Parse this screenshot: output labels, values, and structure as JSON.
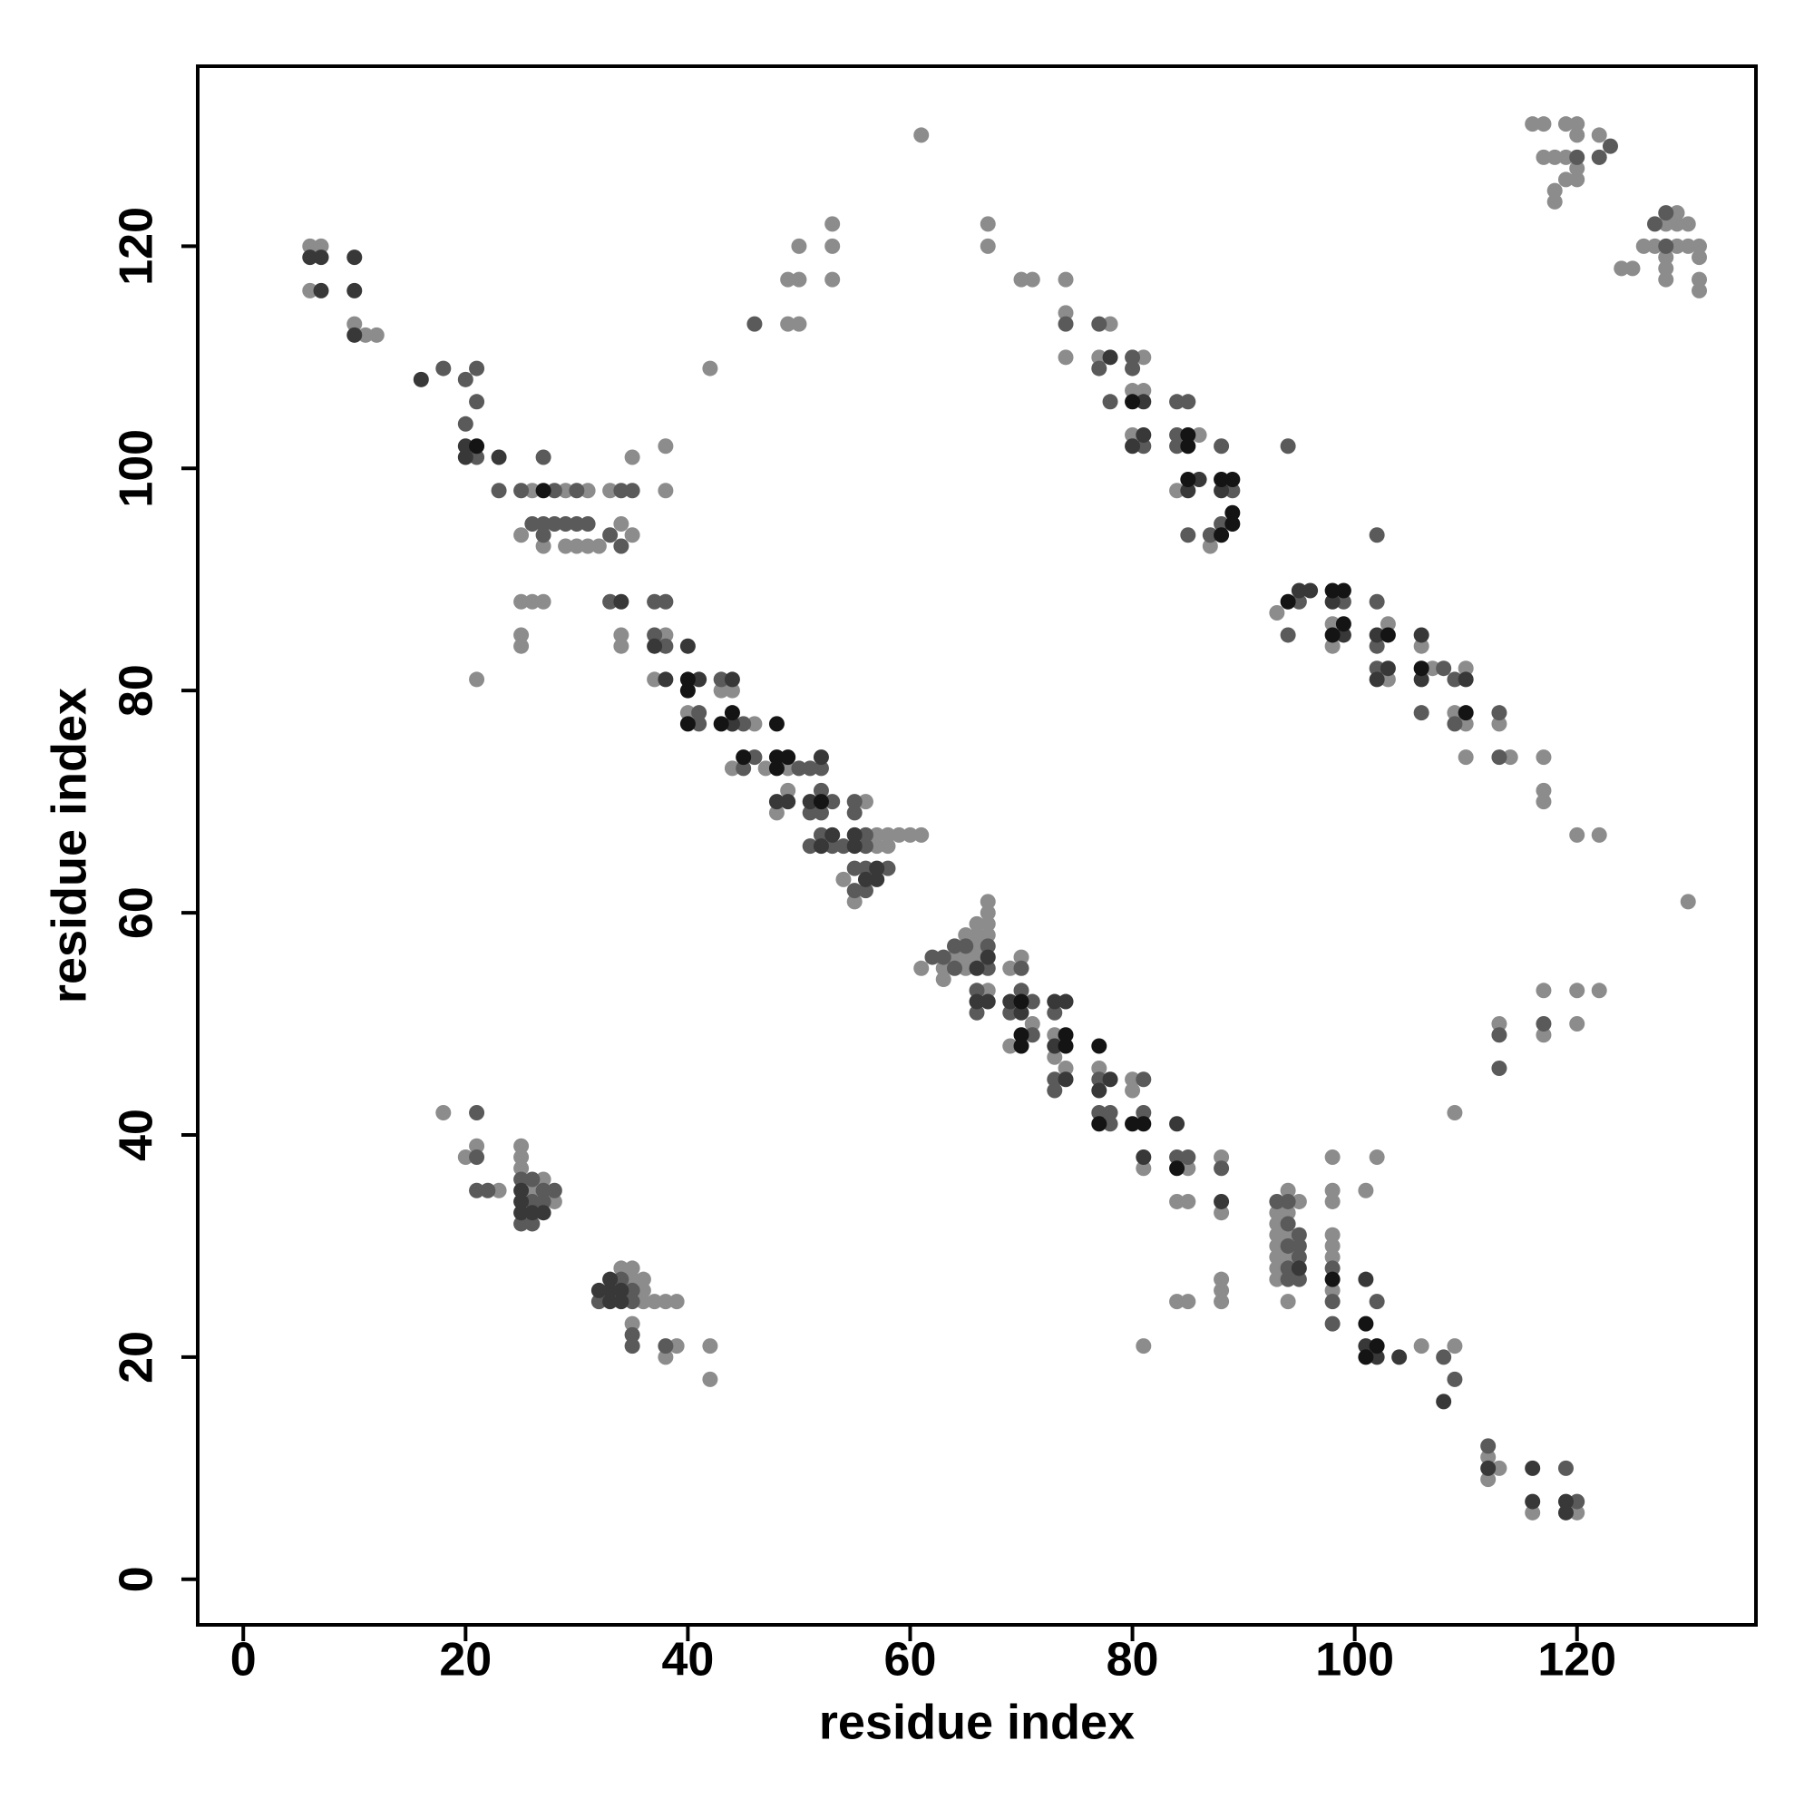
{
  "chart_data": {
    "type": "scatter",
    "xlabel": "residue index",
    "ylabel": "residue index",
    "xlim": [
      -4.1,
      136.1
    ],
    "ylim": [
      -4.1,
      136.2
    ],
    "xticks": [
      0,
      20,
      40,
      60,
      80,
      100,
      120
    ],
    "yticks": [
      0,
      20,
      40,
      60,
      80,
      100,
      120
    ],
    "series": [
      {
        "color": "#8c8c8c",
        "x": [
          6,
          7,
          6,
          10,
          11,
          12,
          26,
          29,
          31,
          33,
          35,
          38,
          38,
          25,
          27,
          29,
          30,
          31,
          32,
          34,
          35,
          25,
          26,
          27,
          25,
          25,
          21,
          34,
          34,
          38,
          37,
          40,
          43,
          44,
          46,
          44,
          47,
          49,
          49,
          48,
          57,
          58,
          59,
          60,
          61,
          57,
          58,
          54,
          55,
          56,
          61,
          63,
          63,
          64,
          65,
          65,
          65,
          66,
          66,
          66,
          66,
          67,
          67,
          67,
          67,
          67,
          69,
          70,
          71,
          73,
          69,
          73,
          74,
          77,
          80,
          80,
          81,
          85,
          84,
          85,
          88,
          88,
          18,
          20,
          21,
          23,
          25,
          25,
          25,
          26,
          27,
          28,
          34,
          35,
          35,
          36,
          36,
          36,
          37,
          38,
          39,
          35,
          39,
          38,
          42,
          42,
          61,
          67,
          67,
          53,
          53,
          53,
          50,
          49,
          50,
          49,
          50,
          42,
          70,
          71,
          74,
          74,
          74,
          78,
          77,
          81,
          80,
          81,
          80,
          86,
          84,
          87,
          93,
          98,
          98,
          103,
          103,
          106,
          107,
          110,
          109,
          110,
          110,
          113,
          114,
          117,
          117,
          117,
          120,
          122,
          130,
          109,
          113,
          117,
          117,
          120,
          120,
          122,
          93,
          93,
          93,
          93,
          93,
          93,
          93,
          94,
          94,
          94,
          94,
          95,
          94,
          98,
          98,
          98,
          98,
          98,
          98,
          98,
          101,
          102,
          106,
          109,
          81,
          84,
          85,
          88,
          88,
          88,
          112,
          112,
          113,
          116,
          120,
          116,
          117,
          119,
          120,
          120,
          122,
          117,
          118,
          119,
          120,
          119,
          120,
          118,
          118,
          129,
          128,
          129,
          130,
          126,
          127,
          129,
          130,
          131,
          128,
          131,
          128,
          124,
          125,
          128,
          131,
          131
        ],
        "y": [
          120,
          120,
          116,
          113,
          112,
          112,
          98,
          98,
          98,
          98,
          101,
          102,
          98,
          94,
          93,
          93,
          93,
          93,
          93,
          95,
          94,
          88,
          88,
          88,
          85,
          84,
          81,
          85,
          84,
          85,
          81,
          78,
          80,
          80,
          77,
          73,
          73,
          73,
          71,
          69,
          67,
          67,
          67,
          67,
          67,
          66,
          66,
          63,
          61,
          70,
          55,
          55,
          54,
          56,
          58,
          56,
          55,
          59,
          58,
          57,
          56,
          61,
          60,
          59,
          58,
          53,
          55,
          56,
          50,
          49,
          48,
          47,
          46,
          46,
          45,
          44,
          37,
          37,
          34,
          34,
          38,
          33,
          42,
          38,
          39,
          35,
          39,
          38,
          37,
          35,
          36,
          34,
          28,
          28,
          27,
          27,
          26,
          25,
          25,
          25,
          25,
          23,
          21,
          20,
          21,
          18,
          130,
          122,
          120,
          122,
          120,
          117,
          120,
          117,
          117,
          113,
          113,
          109,
          117,
          117,
          117,
          114,
          110,
          113,
          110,
          110,
          107,
          107,
          103,
          103,
          98,
          93,
          87,
          86,
          84,
          86,
          81,
          84,
          82,
          82,
          78,
          77,
          74,
          77,
          74,
          74,
          71,
          70,
          67,
          67,
          61,
          42,
          50,
          53,
          49,
          53,
          50,
          53,
          33,
          32,
          31,
          30,
          29,
          28,
          27,
          35,
          33,
          31,
          29,
          34,
          25,
          38,
          35,
          34,
          31,
          30,
          29,
          26,
          35,
          38,
          21,
          21,
          21,
          25,
          25,
          27,
          26,
          25,
          11,
          9,
          10,
          6,
          6,
          131,
          131,
          131,
          131,
          130,
          130,
          128,
          128,
          128,
          127,
          126,
          126,
          125,
          124,
          123,
          122,
          122,
          122,
          120,
          120,
          120,
          120,
          120,
          119,
          119,
          118,
          118,
          118,
          117,
          117,
          116
        ]
      },
      {
        "color": "#5a5a5a",
        "x": [
          18,
          20,
          21,
          21,
          20,
          21,
          23,
          25,
          27,
          28,
          30,
          34,
          35,
          26,
          27,
          27,
          28,
          29,
          30,
          31,
          33,
          34,
          33,
          37,
          38,
          37,
          38,
          43,
          41,
          41,
          44,
          45,
          46,
          45,
          50,
          51,
          52,
          52,
          53,
          51,
          52,
          52,
          51,
          53,
          54,
          55,
          55,
          56,
          56,
          55,
          56,
          58,
          55,
          56,
          62,
          63,
          64,
          64,
          65,
          66,
          66,
          67,
          67,
          70,
          71,
          69,
          70,
          73,
          71,
          73,
          73,
          77,
          77,
          78,
          78,
          81,
          81,
          84,
          85,
          88,
          21,
          21,
          21,
          22,
          25,
          25,
          26,
          26,
          26,
          27,
          27,
          28,
          32,
          34,
          35,
          35,
          35,
          35,
          38,
          46,
          74,
          77,
          77,
          80,
          80,
          78,
          81,
          84,
          85,
          84,
          84,
          88,
          89,
          88,
          87,
          85,
          94,
          95,
          94,
          99,
          102,
          102,
          102,
          102,
          106,
          108,
          109,
          109,
          113,
          113,
          113,
          113,
          117,
          93,
          94,
          94,
          94,
          94,
          94,
          95,
          95,
          95,
          95,
          98,
          98,
          98,
          102,
          108,
          109,
          112,
          119,
          120,
          123,
          120,
          122,
          128,
          127,
          128
        ],
        "y": [
          109,
          108,
          109,
          106,
          104,
          101,
          98,
          98,
          101,
          98,
          98,
          98,
          98,
          95,
          95,
          94,
          95,
          95,
          95,
          95,
          94,
          93,
          88,
          88,
          88,
          85,
          84,
          81,
          78,
          77,
          77,
          77,
          74,
          73,
          73,
          73,
          73,
          71,
          70,
          69,
          69,
          67,
          66,
          66,
          66,
          70,
          69,
          67,
          66,
          64,
          64,
          64,
          62,
          62,
          56,
          56,
          57,
          55,
          57,
          53,
          51,
          57,
          55,
          55,
          52,
          51,
          53,
          51,
          49,
          45,
          44,
          45,
          42,
          42,
          41,
          45,
          42,
          38,
          38,
          37,
          38,
          42,
          35,
          35,
          36,
          32,
          36,
          34,
          32,
          35,
          34,
          35,
          25,
          27,
          26,
          25,
          22,
          21,
          21,
          113,
          113,
          113,
          109,
          110,
          109,
          106,
          102,
          106,
          106,
          103,
          102,
          102,
          98,
          95,
          94,
          94,
          102,
          88,
          85,
          88,
          94,
          88,
          84,
          82,
          78,
          82,
          81,
          77,
          78,
          74,
          49,
          46,
          50,
          34,
          34,
          32,
          30,
          28,
          27,
          31,
          30,
          29,
          27,
          28,
          25,
          23,
          25,
          20,
          18,
          12,
          10,
          7,
          129,
          128,
          128,
          123,
          122,
          120
        ]
      },
      {
        "color": "#383838",
        "x": [
          6,
          7,
          7,
          10,
          10,
          10,
          16,
          20,
          20,
          23,
          34,
          37,
          38,
          40,
          41,
          44,
          44,
          52,
          53,
          52,
          55,
          55,
          57,
          56,
          57,
          48,
          49,
          51,
          66,
          66,
          67,
          67,
          69,
          70,
          73,
          74,
          73,
          74,
          77,
          78,
          81,
          84,
          88,
          25,
          25,
          25,
          26,
          27,
          32,
          33,
          33,
          33,
          34,
          34,
          78,
          81,
          81,
          80,
          86,
          85,
          88,
          95,
          96,
          98,
          99,
          102,
          103,
          102,
          106,
          106,
          110,
          95,
          101,
          101,
          102,
          104,
          108,
          112,
          116,
          116,
          119,
          119
        ],
        "y": [
          119,
          119,
          116,
          119,
          116,
          112,
          108,
          102,
          101,
          101,
          88,
          84,
          81,
          84,
          81,
          81,
          77,
          74,
          67,
          66,
          67,
          66,
          64,
          63,
          63,
          70,
          70,
          70,
          55,
          52,
          56,
          52,
          52,
          51,
          52,
          52,
          48,
          45,
          44,
          45,
          38,
          41,
          34,
          35,
          34,
          33,
          33,
          33,
          26,
          27,
          26,
          25,
          26,
          25,
          110,
          106,
          103,
          102,
          99,
          98,
          98,
          89,
          89,
          88,
          85,
          85,
          82,
          81,
          85,
          81,
          81,
          28,
          27,
          21,
          20,
          20,
          16,
          10,
          10,
          7,
          7,
          6
        ]
      },
      {
        "color": "#141414",
        "x": [
          21,
          27,
          44,
          43,
          48,
          45,
          48,
          49,
          48,
          52,
          40,
          40,
          40,
          70,
          70,
          70,
          74,
          74,
          77,
          77,
          80,
          81,
          84,
          80,
          85,
          85,
          85,
          88,
          89,
          89,
          89,
          88,
          94,
          98,
          99,
          99,
          98,
          103,
          106,
          110,
          98,
          101,
          102,
          101
        ],
        "y": [
          102,
          98,
          78,
          77,
          77,
          74,
          74,
          74,
          73,
          70,
          81,
          80,
          77,
          52,
          49,
          48,
          49,
          48,
          48,
          41,
          41,
          41,
          37,
          106,
          103,
          102,
          99,
          99,
          99,
          96,
          95,
          94,
          88,
          89,
          89,
          86,
          85,
          85,
          82,
          78,
          27,
          23,
          21,
          20
        ]
      }
    ]
  }
}
